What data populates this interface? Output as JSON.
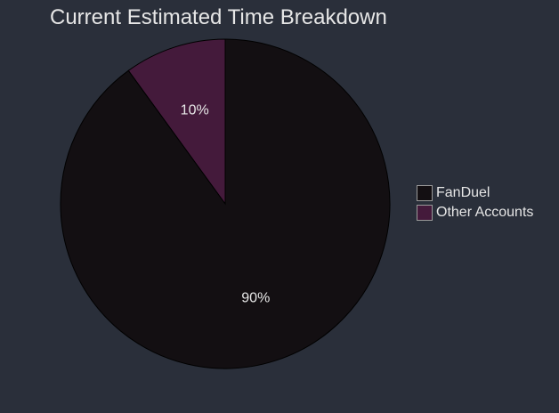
{
  "chart_data": {
    "type": "pie",
    "title": "Current Estimated Time Breakdown",
    "categories": [
      "FanDuel",
      "Other Accounts"
    ],
    "values": [
      90,
      10
    ],
    "data_labels": [
      "90%",
      "10%"
    ],
    "colors": [
      "#130f12",
      "#441a3b"
    ],
    "legend_position": "right",
    "background": "#2a2f3a"
  }
}
